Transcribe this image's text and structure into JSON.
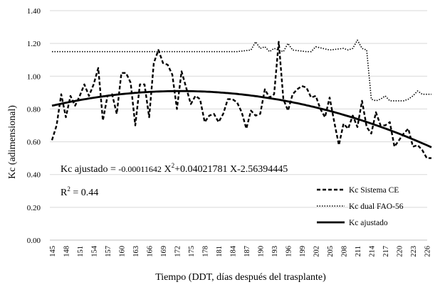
{
  "chart_data": {
    "type": "line",
    "title": "",
    "xlabel": "Tiempo (DDT, días después del trasplante)",
    "ylabel": "Kc (adimensional)",
    "ylim": [
      0,
      1.4
    ],
    "yticks": [
      "0.00",
      "0.20",
      "0.40",
      "0.60",
      "0.80",
      "1.00",
      "1.20",
      "1.40"
    ],
    "xlim": [
      145,
      227
    ],
    "xtick_labels": [
      "145",
      "148",
      "151",
      "154",
      "157",
      "160",
      "163",
      "166",
      "169",
      "172",
      "175",
      "178",
      "181",
      "184",
      "187",
      "190",
      "193",
      "196",
      "199",
      "202",
      "205",
      "208",
      "211",
      "214",
      "217",
      "220",
      "223",
      "226"
    ],
    "legend_position": "bottom-right",
    "series": [
      {
        "name": "Kc Sistema CE",
        "style": "dashed",
        "x": [
          145,
          146,
          147,
          148,
          149,
          150,
          151,
          152,
          153,
          154,
          155,
          156,
          157,
          158,
          159,
          160,
          161,
          162,
          163,
          164,
          165,
          166,
          167,
          168,
          169,
          170,
          171,
          172,
          173,
          174,
          175,
          176,
          177,
          178,
          179,
          180,
          181,
          182,
          183,
          184,
          185,
          186,
          187,
          188,
          189,
          190,
          191,
          192,
          193,
          194,
          195,
          196,
          197,
          198,
          199,
          200,
          201,
          202,
          203,
          204,
          205,
          206,
          207,
          208,
          209,
          210,
          211,
          212,
          213,
          214,
          215,
          216,
          217,
          218,
          219,
          220,
          221,
          222,
          223,
          224,
          225,
          226,
          227
        ],
        "values": [
          0.61,
          0.7,
          0.89,
          0.75,
          0.88,
          0.82,
          0.88,
          0.95,
          0.88,
          0.95,
          1.05,
          0.73,
          0.88,
          0.89,
          0.77,
          1.02,
          1.02,
          0.96,
          0.7,
          0.95,
          0.95,
          0.75,
          1.08,
          1.16,
          1.08,
          1.07,
          1.01,
          0.8,
          1.03,
          0.93,
          0.83,
          0.88,
          0.86,
          0.72,
          0.76,
          0.77,
          0.72,
          0.77,
          0.86,
          0.86,
          0.84,
          0.78,
          0.68,
          0.79,
          0.76,
          0.77,
          0.92,
          0.87,
          0.89,
          1.21,
          0.86,
          0.79,
          0.89,
          0.92,
          0.94,
          0.93,
          0.87,
          0.88,
          0.8,
          0.75,
          0.87,
          0.72,
          0.58,
          0.71,
          0.68,
          0.76,
          0.69,
          0.85,
          0.69,
          0.65,
          0.78,
          0.7,
          0.7,
          0.72,
          0.57,
          0.61,
          0.65,
          0.68,
          0.57,
          0.58,
          0.55,
          0.5,
          0.5
        ]
      },
      {
        "name": "Kc dual FAO-56",
        "style": "dotted",
        "x": [
          145,
          147,
          150,
          155,
          160,
          165,
          170,
          175,
          180,
          185,
          188,
          189,
          190,
          191,
          192,
          193,
          195,
          196,
          197,
          200,
          201,
          202,
          205,
          208,
          209,
          210,
          211,
          212,
          213,
          214,
          215,
          216,
          217,
          218,
          219,
          220,
          221,
          222,
          223,
          224,
          225,
          226,
          227
        ],
        "values": [
          1.15,
          1.15,
          1.15,
          1.15,
          1.15,
          1.15,
          1.15,
          1.15,
          1.15,
          1.15,
          1.16,
          1.21,
          1.17,
          1.18,
          1.15,
          1.17,
          1.15,
          1.2,
          1.16,
          1.15,
          1.15,
          1.18,
          1.16,
          1.17,
          1.16,
          1.17,
          1.22,
          1.17,
          1.16,
          0.86,
          0.85,
          0.86,
          0.88,
          0.85,
          0.85,
          0.85,
          0.85,
          0.86,
          0.88,
          0.91,
          0.89,
          0.89,
          0.89
        ]
      },
      {
        "name": "Kc ajustado",
        "style": "solid",
        "polynomial": {
          "a": -0.00011642,
          "b": 0.04021781,
          "c": -2.56394445
        },
        "x_range": [
          145,
          227
        ]
      }
    ],
    "annotations": {
      "equation_prefix": "Kc ajustado = ",
      "equation_coef": "-0.00011642",
      "equation_term1": " X",
      "equation_sup1": "2",
      "equation_rest": "+0.04021781 X-2.56394445",
      "r2_label": "R",
      "r2_sup": "2",
      "r2_value": " = 0.44"
    }
  }
}
